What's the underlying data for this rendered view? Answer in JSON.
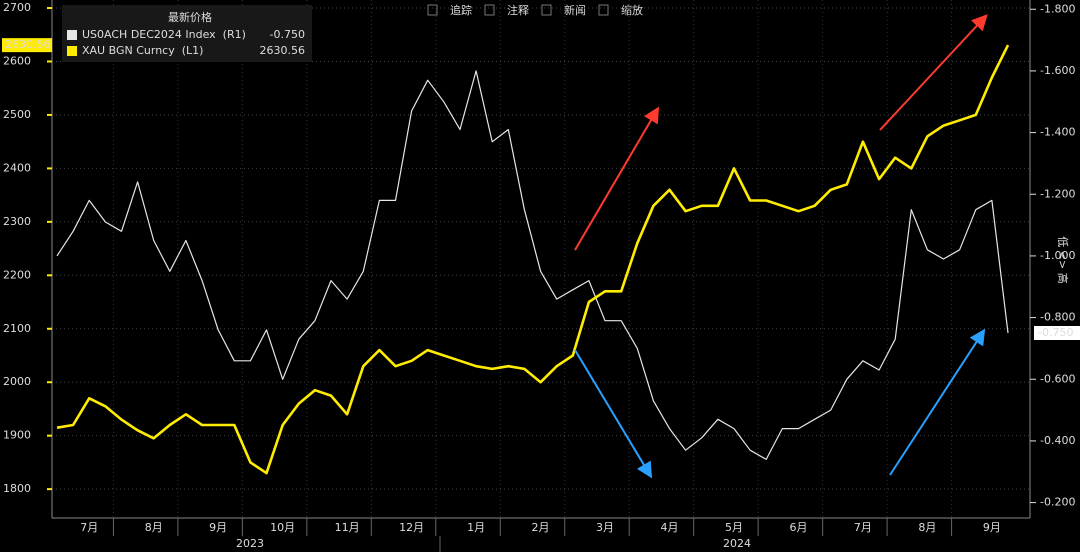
{
  "toolbar": [
    "追踪",
    "注释",
    "新闻",
    "缩放"
  ],
  "chart_data": {
    "type": "line",
    "legend_title": "最新价格",
    "categories": [
      null,
      null,
      "7月",
      null,
      null,
      null,
      "8月",
      null,
      null,
      null,
      "9月",
      null,
      null,
      null,
      "10月",
      null,
      null,
      null,
      "11月",
      null,
      null,
      null,
      "12月",
      null,
      null,
      null,
      "1月",
      null,
      null,
      null,
      "2月",
      null,
      null,
      null,
      "3月",
      null,
      null,
      null,
      "4月",
      null,
      null,
      null,
      "5月",
      null,
      null,
      null,
      "6月",
      null,
      null,
      null,
      "7月",
      null,
      null,
      null,
      "8月",
      null,
      null,
      null,
      "9月",
      null
    ],
    "years": [
      "2023",
      "2024"
    ],
    "series": [
      {
        "name": "US0ACH DEC2024 Index  (R1)",
        "color": "#e6e6e6",
        "axis": "y2",
        "last_value_label": "-0.750",
        "values": [
          -1.0,
          -1.08,
          -1.18,
          -1.11,
          -1.08,
          -1.24,
          -1.05,
          -0.95,
          -1.05,
          -0.92,
          -0.76,
          -0.66,
          -0.66,
          -0.76,
          -0.6,
          -0.73,
          -0.79,
          -0.92,
          -0.86,
          -0.95,
          -1.18,
          -1.18,
          -1.47,
          -1.57,
          -1.5,
          -1.41,
          -1.6,
          -1.37,
          -1.41,
          -1.15,
          -0.95,
          -0.86,
          -0.89,
          -0.92,
          -0.79,
          -0.79,
          -0.7,
          -0.53,
          -0.44,
          -0.37,
          -0.41,
          -0.47,
          -0.44,
          -0.37,
          -0.34,
          -0.44,
          -0.44,
          -0.47,
          -0.5,
          -0.6,
          -0.66,
          -0.63,
          -0.73,
          -1.15,
          -1.02,
          -0.99,
          -1.02,
          -1.15,
          -1.18,
          -0.75
        ]
      },
      {
        "name": "XAU BGN Curncy  (L1)",
        "color": "#ffec00",
        "values": [
          1915,
          1920,
          1970,
          1955,
          1930,
          1910,
          1895,
          1920,
          1940,
          1920,
          1920,
          1920,
          1850,
          1830,
          1920,
          1960,
          1985,
          1975,
          1940,
          2030,
          2060,
          2030,
          2040,
          2060,
          2050,
          2040,
          2030,
          2025,
          2030,
          2025,
          2000,
          2030,
          2050,
          2150,
          2170,
          2170,
          2260,
          2330,
          2360,
          2320,
          2330,
          2330,
          2400,
          2340,
          2340,
          2330,
          2320,
          2330,
          2360,
          2370,
          2450,
          2380,
          2420,
          2400,
          2460,
          2480,
          2490,
          2500,
          2570,
          2630.56
        ]
      }
    ],
    "ylim": [
      1746,
      2715
    ],
    "yticks": [
      1800,
      1900,
      2000,
      2100,
      2200,
      2300,
      2400,
      2500,
      2600,
      2700
    ],
    "y2lim": [
      -0.15,
      -1.83
    ],
    "y2ticks": [
      {
        "value": -1.8,
        "label": "-1.800"
      },
      {
        "value": -1.6,
        "label": "-1.600"
      },
      {
        "value": -1.4,
        "label": "-1.400"
      },
      {
        "value": -1.2,
        "label": "-1.200"
      },
      {
        "value": -1.0,
        "label": "-1.000"
      },
      {
        "value": -0.8,
        "label": "-0.800"
      },
      {
        "value": -0.6,
        "label": "-0.600"
      },
      {
        "value": -0.4,
        "label": "-0.400"
      },
      {
        "value": -0.2,
        "label": "-0.200"
      }
    ],
    "y2_side_label": "低 <> 高",
    "grid": true
  }
}
